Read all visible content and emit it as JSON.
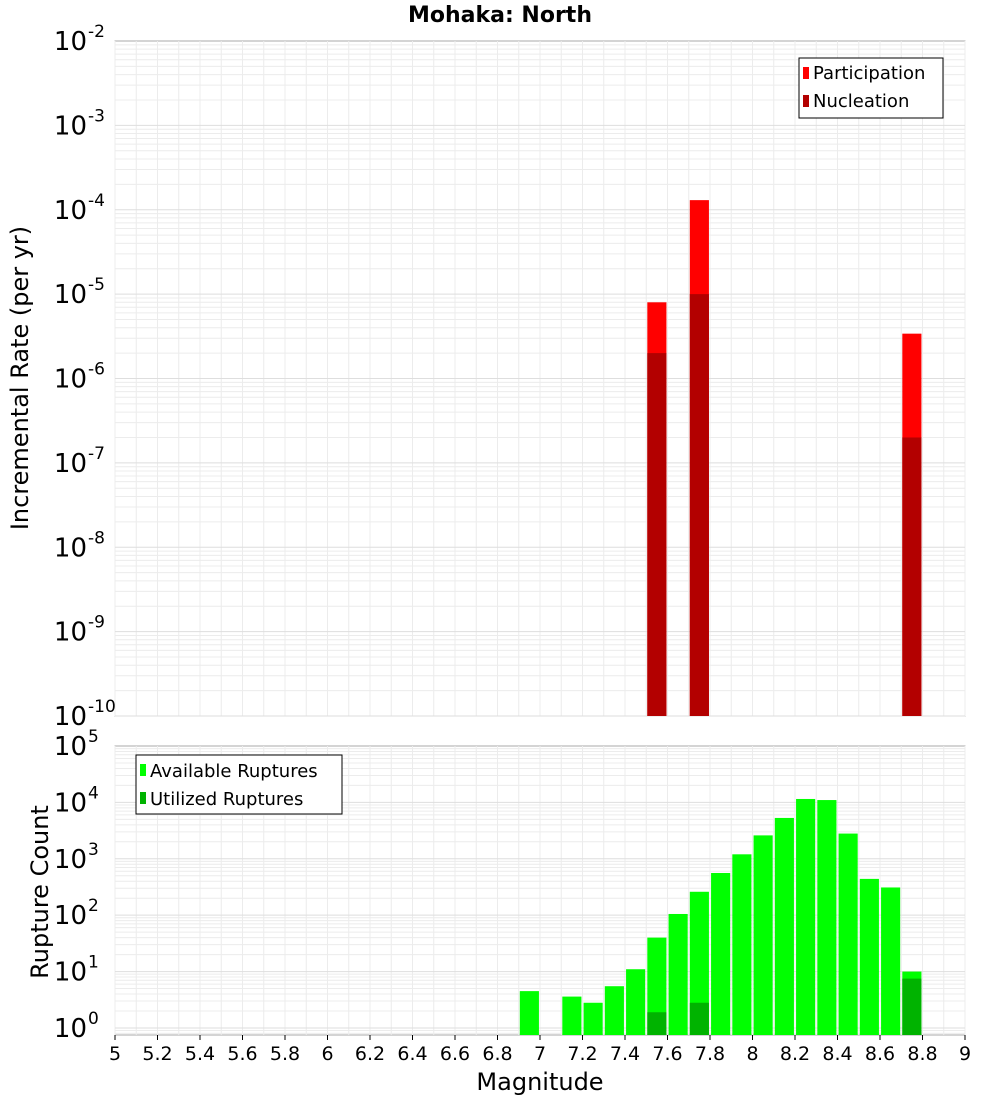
{
  "chart_data": [
    {
      "type": "bar",
      "title": "Mohaka: North",
      "xlabel": "",
      "ylabel": "Incremental Rate (per yr)",
      "yscale": "log",
      "xlim": [
        5,
        9
      ],
      "ylim": [
        1e-10,
        0.01
      ],
      "ytick_exponents": [
        "-10",
        "-9",
        "-8",
        "-7",
        "-6",
        "-5",
        "-4",
        "-3",
        "-2"
      ],
      "ytick_base": "10",
      "grid": true,
      "legend_position": "top-right",
      "bar_width": 0.09,
      "series": [
        {
          "name": "Participation",
          "color": "#ff0000",
          "x": [
            7.55,
            7.75,
            8.75
          ],
          "values": [
            8e-06,
            0.00013,
            3.4e-06
          ]
        },
        {
          "name": "Nucleation",
          "color": "#b30000",
          "x": [
            7.55,
            7.75,
            8.75
          ],
          "values": [
            2e-06,
            1e-05,
            2e-07
          ]
        }
      ]
    },
    {
      "type": "bar",
      "title": "",
      "xlabel": "Magnitude",
      "ylabel": "Rupture Count",
      "yscale": "log",
      "xlim": [
        5,
        9
      ],
      "ylim": [
        0.75,
        100000.0
      ],
      "ytick_exponents": [
        "0",
        "1",
        "2",
        "3",
        "4",
        "5"
      ],
      "ytick_base": "10",
      "xticks": [
        "5",
        "5.2",
        "5.4",
        "5.6",
        "5.8",
        "6",
        "6.2",
        "6.4",
        "6.6",
        "6.8",
        "7",
        "7.2",
        "7.4",
        "7.6",
        "7.8",
        "8",
        "8.2",
        "8.4",
        "8.6",
        "8.8",
        "9"
      ],
      "grid": true,
      "legend_position": "top-left",
      "bar_width": 0.09,
      "series": [
        {
          "name": "Available Ruptures",
          "color": "#00ff00",
          "x": [
            6.95,
            7.15,
            7.25,
            7.35,
            7.45,
            7.55,
            7.65,
            7.75,
            7.85,
            7.95,
            8.05,
            8.15,
            8.25,
            8.35,
            8.45,
            8.55,
            8.65,
            8.75
          ],
          "values": [
            4.5,
            3.6,
            2.8,
            5.5,
            11,
            40,
            105,
            260,
            560,
            1200,
            2600,
            5300,
            11500,
            11000,
            2800,
            440,
            310,
            10
          ]
        },
        {
          "name": "Utilized Ruptures",
          "color": "#00b300",
          "x": [
            7.55,
            7.75,
            8.75
          ],
          "values": [
            1.9,
            2.8,
            7.5
          ]
        }
      ]
    }
  ]
}
